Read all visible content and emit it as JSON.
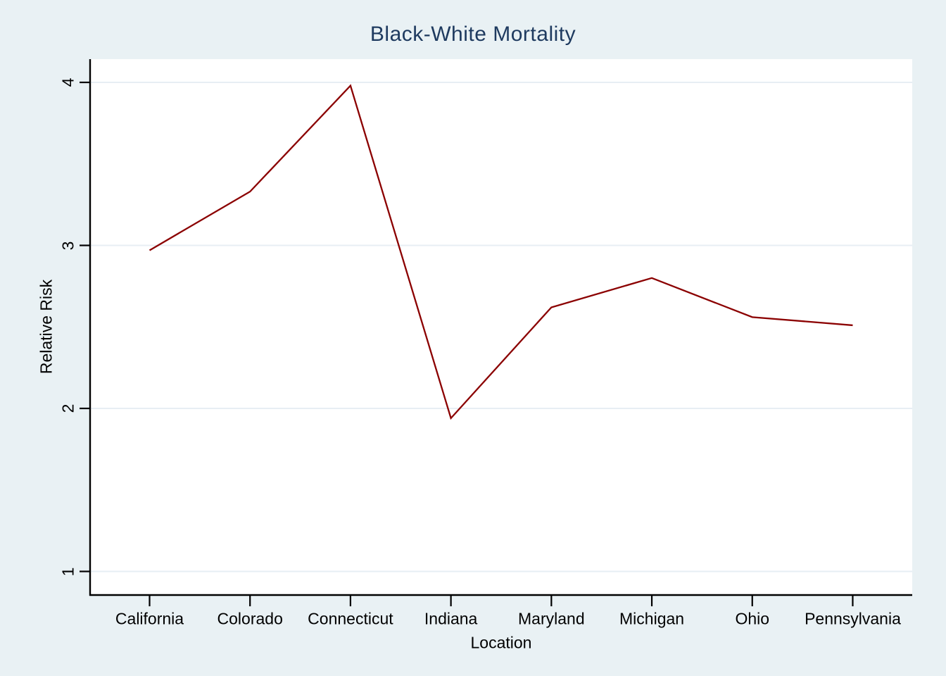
{
  "chart_data": {
    "type": "line",
    "title": "Black-White Mortality",
    "xlabel": "Location",
    "ylabel": "Relative Risk",
    "categories": [
      "California",
      "Colorado",
      "Connecticut",
      "Indiana",
      "Maryland",
      "Michigan",
      "Ohio",
      "Pennsylvania"
    ],
    "series": [
      {
        "name": "Relative Risk",
        "values": [
          2.97,
          3.33,
          3.98,
          1.94,
          2.62,
          2.8,
          2.56,
          2.51
        ]
      }
    ],
    "yticks": [
      1,
      2,
      3,
      4
    ],
    "ylim": [
      0.85,
      4.15
    ],
    "grid": true,
    "legend_position": "none",
    "colors": {
      "line": "#8b0000",
      "background": "#e9f1f4",
      "plot_background": "#ffffff",
      "gridline": "#e7eef4",
      "axis": "#000000",
      "title_text": "#1e3a5f",
      "label_text": "#000000"
    }
  }
}
